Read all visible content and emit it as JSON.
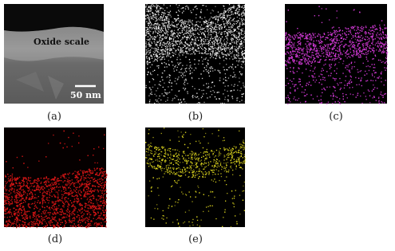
{
  "panels": [
    {
      "label": "(a)",
      "annotations": {
        "region": "Oxide scale",
        "scale_bar": "50 nm"
      }
    },
    {
      "label": "(b)"
    },
    {
      "label": "(c)"
    },
    {
      "label": "(d)"
    },
    {
      "label": "(e)"
    }
  ]
}
